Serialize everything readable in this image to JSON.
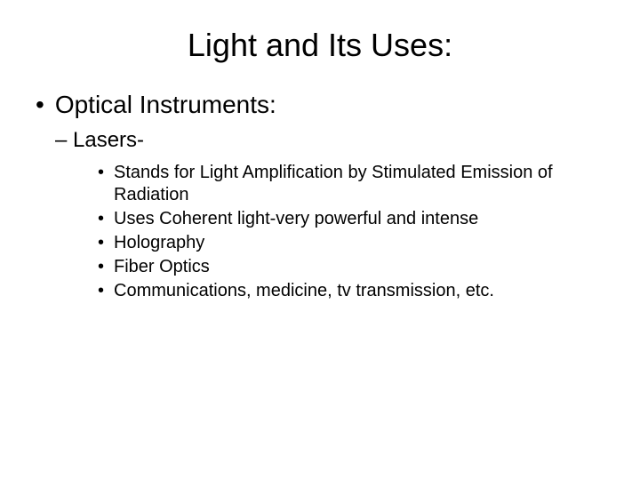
{
  "title": "Light and Its Uses:",
  "level1": {
    "item": "Optical Instruments:"
  },
  "level2": {
    "item": "– Lasers-"
  },
  "level3": {
    "items": [
      "Stands for Light Amplification by Stimulated Emission of Radiation",
      "Uses Coherent light-very powerful and intense",
      "Holography",
      "Fiber Optics",
      "Communications, medicine, tv transmission, etc."
    ]
  },
  "colors": {
    "background": "#ffffff",
    "text": "#000000"
  },
  "fonts": {
    "title_size_pt": 36,
    "l1_size_pt": 28,
    "l2_size_pt": 24,
    "l3_size_pt": 20
  }
}
